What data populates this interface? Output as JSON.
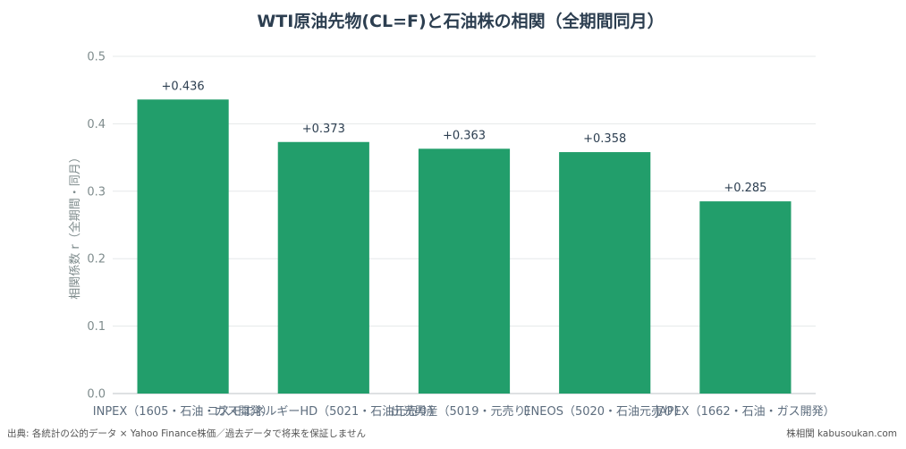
{
  "chart_data": {
    "type": "bar",
    "title": "WTI原油先物(CL=F)と石油株の相関（全期間同月）",
    "ylabel": "相関係数 r（全期間・同月）",
    "xlabel": "",
    "categories": [
      "INPEX（1605・石油・ガス開発）",
      "コスモエネルギーHD（5021・石油元売り）",
      "出光興産（5019・元売り）",
      "ENEOS（5020・石油元売り）",
      "JAPEX（1662・石油・ガス開発）"
    ],
    "values": [
      0.436,
      0.373,
      0.363,
      0.358,
      0.285
    ],
    "value_labels": [
      "+0.436",
      "+0.373",
      "+0.363",
      "+0.358",
      "+0.285"
    ],
    "ylim": [
      0,
      0.5
    ],
    "yticks": [
      "0.0",
      "0.1",
      "0.2",
      "0.3",
      "0.4",
      "0.5"
    ],
    "grid": true,
    "bar_color": "#229e6b"
  },
  "footer": {
    "source": "出典: 各統計の公的データ × Yahoo Finance株価／過去データで将来を保証しません",
    "brand": "株相関 kabusoukan.com"
  }
}
